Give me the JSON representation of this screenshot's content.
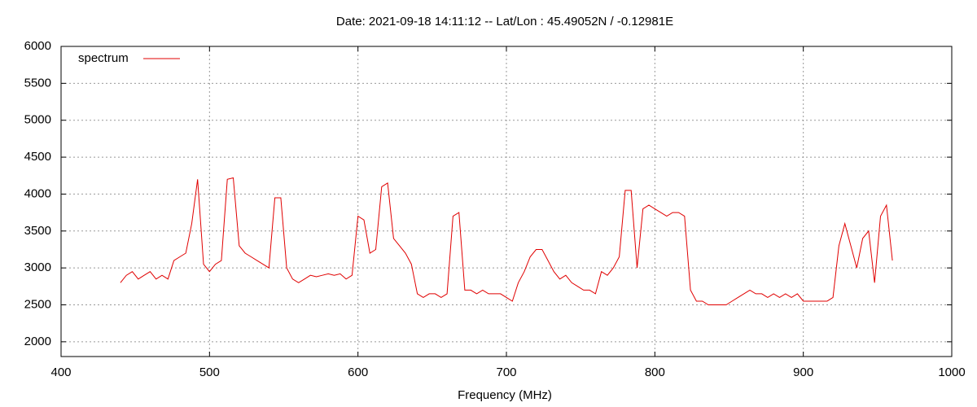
{
  "chart_data": {
    "type": "line",
    "title": "Date: 2021-09-18 14:11:12  --  Lat/Lon : 45.49052N / -0.12981E",
    "x_label": "Frequency (MHz)",
    "xlim": [
      400,
      1000
    ],
    "xticks": [
      400,
      500,
      600,
      700,
      800,
      900,
      1000
    ],
    "ylim": [
      1800,
      6000
    ],
    "yticks": [
      2000,
      2500,
      3000,
      3500,
      4000,
      4500,
      5000,
      5500,
      6000
    ],
    "grid": true,
    "legend": "top-left",
    "x": [
      440,
      444,
      448,
      452,
      456,
      460,
      464,
      468,
      472,
      476,
      480,
      484,
      488,
      492,
      496,
      500,
      504,
      508,
      512,
      516,
      520,
      524,
      528,
      532,
      536,
      540,
      544,
      548,
      552,
      556,
      560,
      564,
      568,
      572,
      576,
      580,
      584,
      588,
      592,
      596,
      600,
      604,
      608,
      612,
      616,
      620,
      624,
      628,
      632,
      636,
      640,
      644,
      648,
      652,
      656,
      660,
      664,
      668,
      672,
      676,
      680,
      684,
      688,
      692,
      696,
      700,
      704,
      708,
      712,
      716,
      720,
      724,
      728,
      732,
      736,
      740,
      744,
      748,
      752,
      756,
      760,
      764,
      768,
      772,
      776,
      780,
      784,
      788,
      792,
      796,
      800,
      804,
      808,
      812,
      816,
      820,
      824,
      828,
      832,
      836,
      840,
      844,
      848,
      852,
      856,
      860,
      864,
      868,
      872,
      876,
      880,
      884,
      888,
      892,
      896,
      900,
      904,
      908,
      912,
      916,
      920,
      924,
      928,
      932,
      936,
      940,
      944,
      948,
      952,
      956,
      960
    ],
    "series": [
      {
        "name": "spectrum",
        "color": "#e00000",
        "values": [
          2800,
          2900,
          2950,
          2850,
          2900,
          2950,
          2850,
          2900,
          2850,
          3100,
          3150,
          3200,
          3600,
          4200,
          3050,
          2950,
          3050,
          3100,
          4200,
          4220,
          3300,
          3200,
          3150,
          3100,
          3050,
          3000,
          3950,
          3950,
          3000,
          2850,
          2800,
          2850,
          2900,
          2880,
          2900,
          2920,
          2900,
          2920,
          2850,
          2900,
          3700,
          3650,
          3200,
          3250,
          4100,
          4150,
          3400,
          3300,
          3200,
          3050,
          2650,
          2600,
          2650,
          2650,
          2600,
          2650,
          3700,
          3750,
          2700,
          2700,
          2650,
          2700,
          2650,
          2650,
          2650,
          2600,
          2550,
          2800,
          2950,
          3150,
          3250,
          3250,
          3100,
          2950,
          2850,
          2900,
          2800,
          2750,
          2700,
          2700,
          2650,
          2950,
          2900,
          3000,
          3150,
          4050,
          4050,
          3000,
          3800,
          3850,
          3800,
          3750,
          3700,
          3750,
          3750,
          3700,
          2700,
          2550,
          2550,
          2500,
          2500,
          2500,
          2500,
          2550,
          2600,
          2650,
          2700,
          2650,
          2650,
          2600,
          2650,
          2600,
          2650,
          2600,
          2650,
          2550,
          2550,
          2550,
          2550,
          2550,
          2600,
          3300,
          3600,
          3300,
          3000,
          3400,
          3500,
          2800,
          3700,
          3850,
          3100
        ]
      }
    ]
  }
}
